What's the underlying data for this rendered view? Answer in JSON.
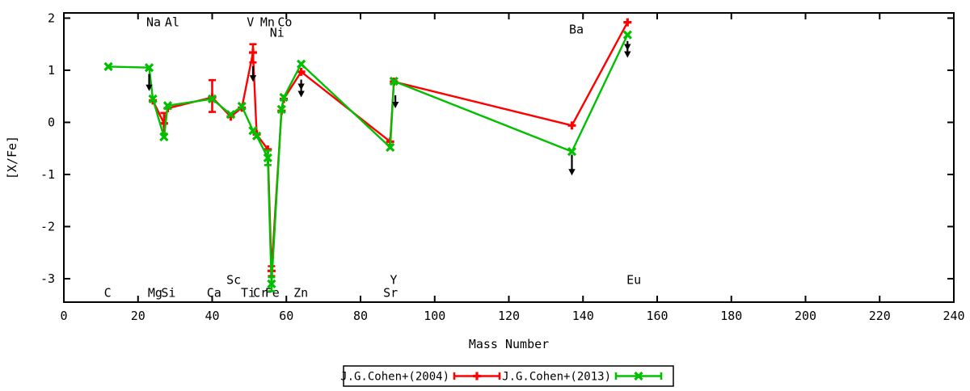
{
  "figure": {
    "background": "#ffffff",
    "text_color": "#000000",
    "axis_color": "#000000",
    "arrow_color": "#000000"
  },
  "chart_data": {
    "type": "line",
    "title": "",
    "xlabel": "Mass Number",
    "ylabel": "[X/Fe]",
    "xlim": [
      0,
      240
    ],
    "ylim": [
      -3.45,
      2.1
    ],
    "xticks": [
      0,
      20,
      40,
      60,
      80,
      100,
      120,
      140,
      160,
      180,
      200,
      220,
      240
    ],
    "yticks": [
      -3,
      -2,
      -1,
      0,
      1,
      2
    ],
    "grid": false,
    "legend_position": "bottom-center-outside",
    "series": [
      {
        "name": "J.G.Cohen+(2004)",
        "color": "#ff0000",
        "marker": "plus",
        "points": [
          {
            "el": "Mg",
            "x": 24,
            "y": 0.42
          },
          {
            "el": "Al",
            "x": 27,
            "y": -0.02
          },
          {
            "el": "Si",
            "x": 28,
            "y": 0.27
          },
          {
            "el": "Ca",
            "x": 40,
            "y": 0.48
          },
          {
            "el": "Sc",
            "x": 45,
            "y": 0.11
          },
          {
            "el": "Ti",
            "x": 48,
            "y": 0.28
          },
          {
            "el": "V",
            "x": 51,
            "y": 1.34
          },
          {
            "el": "Cr",
            "x": 52,
            "y": -0.23
          },
          {
            "el": "Mn",
            "x": 55,
            "y": -0.52
          },
          {
            "el": "Fe",
            "x": 56,
            "y": -2.85
          },
          {
            "el": "Ni",
            "x": 58.7,
            "y": 0.22
          },
          {
            "el": "Co",
            "x": 59.3,
            "y": 0.45
          },
          {
            "el": "Zn",
            "x": 64,
            "y": 0.97
          },
          {
            "el": "Sr",
            "x": 88,
            "y": -0.37
          },
          {
            "el": "Y",
            "x": 89,
            "y": 0.78
          },
          {
            "el": "Ba",
            "x": 137,
            "y": -0.06
          },
          {
            "el": "Eu",
            "x": 152,
            "y": 1.92
          }
        ],
        "error_bars": [
          {
            "el": "Al",
            "x": 27,
            "low": -0.22,
            "high": 0.18
          },
          {
            "el": "Ca",
            "x": 40,
            "low": 0.2,
            "high": 0.81
          },
          {
            "el": "V",
            "x": 51,
            "low": 1.15,
            "high": 1.5
          },
          {
            "el": "Fe",
            "x": 56,
            "low": -2.95,
            "high": -2.76
          }
        ]
      },
      {
        "name": "J.G.Cohen+(2013)",
        "color": "#00c000",
        "marker": "cross",
        "points": [
          {
            "el": "C",
            "x": 12,
            "y": 1.07
          },
          {
            "el": "Na",
            "x": 23,
            "y": 1.05
          },
          {
            "el": "Mg",
            "x": 24,
            "y": 0.45
          },
          {
            "el": "Al",
            "x": 27,
            "y": -0.28
          },
          {
            "el": "Si",
            "x": 28,
            "y": 0.32
          },
          {
            "el": "Ca",
            "x": 40,
            "y": 0.45
          },
          {
            "el": "Sc",
            "x": 45,
            "y": 0.15
          },
          {
            "el": "Ti",
            "x": 48,
            "y": 0.31
          },
          {
            "el": "V",
            "x": 51,
            "y": -0.16
          },
          {
            "el": "Cr",
            "x": 52,
            "y": -0.26
          },
          {
            "el": "Mn",
            "x": 55,
            "y": -0.68
          },
          {
            "el": "Fe",
            "x": 56,
            "y": -3.1
          },
          {
            "el": "Ni",
            "x": 58.7,
            "y": 0.25
          },
          {
            "el": "Co",
            "x": 59.3,
            "y": 0.48
          },
          {
            "el": "Zn",
            "x": 64,
            "y": 1.12
          },
          {
            "el": "Sr",
            "x": 88,
            "y": -0.48
          },
          {
            "el": "Y",
            "x": 89,
            "y": 0.79
          },
          {
            "el": "Ba",
            "x": 137,
            "y": -0.56
          },
          {
            "el": "Eu",
            "x": 152,
            "y": 1.68
          }
        ],
        "error_bars": [
          {
            "el": "Mn",
            "x": 55,
            "low": -0.82,
            "high": -0.54
          },
          {
            "el": "Fe",
            "x": 56,
            "low": -3.24,
            "high": -2.97
          }
        ]
      }
    ],
    "upper_limit_arrows": [
      {
        "el": "Na",
        "x": 23,
        "y_from": 0.93,
        "y_to": 0.6,
        "heads": 1
      },
      {
        "el": "V",
        "x": 51,
        "y_from": 1.08,
        "y_to": 0.78,
        "heads": 1
      },
      {
        "el": "Zn",
        "x": 64,
        "y_from": 0.82,
        "y_to": 0.48,
        "heads": 2
      },
      {
        "el": "Y",
        "x": 89.4,
        "y_from": 0.52,
        "y_to": 0.27,
        "heads": 1
      },
      {
        "el": "Ba",
        "x": 137,
        "y_from": -0.62,
        "y_to": -1.02,
        "heads": 1
      },
      {
        "el": "Eu",
        "x": 152,
        "y_from": 1.56,
        "y_to": 1.24,
        "heads": 2
      }
    ],
    "element_labels": [
      {
        "text": "Na",
        "x": 24.2,
        "y": 1.92,
        "row": "top"
      },
      {
        "text": "Al",
        "x": 29.2,
        "y": 1.92,
        "row": "top"
      },
      {
        "text": "V",
        "x": 50.3,
        "y": 1.92,
        "row": "top"
      },
      {
        "text": "Mn",
        "x": 54.9,
        "y": 1.92,
        "row": "top"
      },
      {
        "text": "Ni",
        "x": 57.5,
        "y": 1.72,
        "row": "top"
      },
      {
        "text": "Co",
        "x": 59.6,
        "y": 1.92,
        "row": "top"
      },
      {
        "text": "Ba",
        "x": 138.2,
        "y": 1.78,
        "row": "top"
      },
      {
        "text": "C",
        "x": 11.8,
        "y": -3.27,
        "row": "bottom"
      },
      {
        "text": "Mg",
        "x": 24.6,
        "y": -3.27,
        "row": "bottom"
      },
      {
        "text": "Si",
        "x": 28.2,
        "y": -3.27,
        "row": "bottom"
      },
      {
        "text": "Ca",
        "x": 40.5,
        "y": -3.27,
        "row": "bottom"
      },
      {
        "text": "Sc",
        "x": 45.8,
        "y": -3.02,
        "row": "bottom"
      },
      {
        "text": "Ti",
        "x": 49.7,
        "y": -3.27,
        "row": "bottom"
      },
      {
        "text": "Cr",
        "x": 53.0,
        "y": -3.27,
        "row": "bottom"
      },
      {
        "text": "Fe",
        "x": 56.2,
        "y": -3.27,
        "row": "bottom"
      },
      {
        "text": "Zn",
        "x": 63.9,
        "y": -3.27,
        "row": "bottom"
      },
      {
        "text": "Sr",
        "x": 88.1,
        "y": -3.27,
        "row": "bottom"
      },
      {
        "text": "Y",
        "x": 88.9,
        "y": -3.02,
        "row": "bottom"
      },
      {
        "text": "Eu",
        "x": 153.7,
        "y": -3.02,
        "row": "bottom"
      }
    ]
  }
}
